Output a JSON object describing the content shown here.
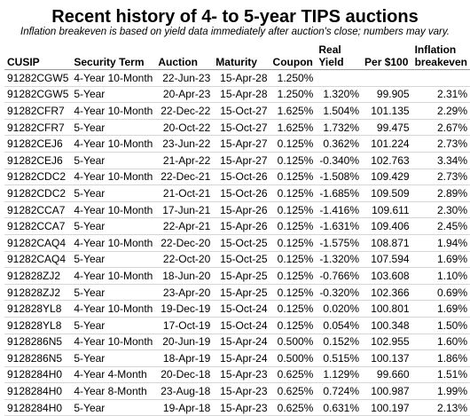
{
  "title": "Recent history of 4- to 5-year TIPS auctions",
  "subtitle": "Inflation breakeven is based on yield data immediately after auction's close; numbers may vary.",
  "headers": {
    "cusip": "CUSIP",
    "term": "Security Term",
    "auction": "Auction",
    "maturity": "Maturity",
    "coupon": "Coupon",
    "real_yield_1": "Real",
    "real_yield_2": "Yield",
    "per100": "Per $100",
    "inflation_1": "Inflation",
    "inflation_2": "breakeven"
  },
  "rows": [
    {
      "cusip": "91282CGW5",
      "term": "4-Year 10-Month",
      "auction": "22-Jun-23",
      "maturity": "15-Apr-28",
      "coupon": "1.250%",
      "real_yield": "",
      "per100": "",
      "breakeven": ""
    },
    {
      "cusip": "91282CGW5",
      "term": "5-Year",
      "auction": "20-Apr-23",
      "maturity": "15-Apr-28",
      "coupon": "1.250%",
      "real_yield": "1.320%",
      "per100": "99.905",
      "breakeven": "2.31%"
    },
    {
      "cusip": "91282CFR7",
      "term": "4-Year 10-Month",
      "auction": "22-Dec-22",
      "maturity": "15-Oct-27",
      "coupon": "1.625%",
      "real_yield": "1.504%",
      "per100": "101.135",
      "breakeven": "2.29%"
    },
    {
      "cusip": "91282CFR7",
      "term": "5-Year",
      "auction": "20-Oct-22",
      "maturity": "15-Oct-27",
      "coupon": "1.625%",
      "real_yield": "1.732%",
      "per100": "99.475",
      "breakeven": "2.67%"
    },
    {
      "cusip": "91282CEJ6",
      "term": "4-Year 10-Month",
      "auction": "23-Jun-22",
      "maturity": "15-Apr-27",
      "coupon": "0.125%",
      "real_yield": "0.362%",
      "per100": "101.224",
      "breakeven": "2.73%"
    },
    {
      "cusip": "91282CEJ6",
      "term": "5-Year",
      "auction": "21-Apr-22",
      "maturity": "15-Apr-27",
      "coupon": "0.125%",
      "real_yield": "-0.340%",
      "per100": "102.763",
      "breakeven": "3.34%"
    },
    {
      "cusip": "91282CDC2",
      "term": "4-Year 10-Month",
      "auction": "22-Dec-21",
      "maturity": "15-Oct-26",
      "coupon": "0.125%",
      "real_yield": "-1.508%",
      "per100": "109.429",
      "breakeven": "2.73%"
    },
    {
      "cusip": "91282CDC2",
      "term": "5-Year",
      "auction": "21-Oct-21",
      "maturity": "15-Oct-26",
      "coupon": "0.125%",
      "real_yield": "-1.685%",
      "per100": "109.509",
      "breakeven": "2.89%"
    },
    {
      "cusip": "91282CCA7",
      "term": "4-Year 10-Month",
      "auction": "17-Jun-21",
      "maturity": "15-Apr-26",
      "coupon": "0.125%",
      "real_yield": "-1.416%",
      "per100": "109.611",
      "breakeven": "2.30%"
    },
    {
      "cusip": "91282CCA7",
      "term": "5-Year",
      "auction": "22-Apr-21",
      "maturity": "15-Apr-26",
      "coupon": "0.125%",
      "real_yield": "-1.631%",
      "per100": "109.406",
      "breakeven": "2.45%"
    },
    {
      "cusip": "91282CAQ4",
      "term": "4-Year 10-Month",
      "auction": "22-Dec-20",
      "maturity": "15-Oct-25",
      "coupon": "0.125%",
      "real_yield": "-1.575%",
      "per100": "108.871",
      "breakeven": "1.94%"
    },
    {
      "cusip": "91282CAQ4",
      "term": "5-Year",
      "auction": "22-Oct-20",
      "maturity": "15-Oct-25",
      "coupon": "0.125%",
      "real_yield": "-1.320%",
      "per100": "107.594",
      "breakeven": "1.69%"
    },
    {
      "cusip": "912828ZJ2",
      "term": "4-Year 10-Month",
      "auction": "18-Jun-20",
      "maturity": "15-Apr-25",
      "coupon": "0.125%",
      "real_yield": "-0.766%",
      "per100": "103.608",
      "breakeven": "1.10%"
    },
    {
      "cusip": "912828ZJ2",
      "term": "5-Year",
      "auction": "23-Apr-20",
      "maturity": "15-Apr-25",
      "coupon": "0.125%",
      "real_yield": "-0.320%",
      "per100": "102.366",
      "breakeven": "0.69%"
    },
    {
      "cusip": "912828YL8",
      "term": "4-Year 10-Month",
      "auction": "19-Dec-19",
      "maturity": "15-Oct-24",
      "coupon": "0.125%",
      "real_yield": "0.020%",
      "per100": "100.801",
      "breakeven": "1.69%"
    },
    {
      "cusip": "912828YL8",
      "term": "5-Year",
      "auction": "17-Oct-19",
      "maturity": "15-Oct-24",
      "coupon": "0.125%",
      "real_yield": "0.054%",
      "per100": "100.348",
      "breakeven": "1.50%"
    },
    {
      "cusip": "9128286N5",
      "term": "4-Year 10-Month",
      "auction": "20-Jun-19",
      "maturity": "15-Apr-24",
      "coupon": "0.500%",
      "real_yield": "0.152%",
      "per100": "102.955",
      "breakeven": "1.60%"
    },
    {
      "cusip": "9128286N5",
      "term": "5-Year",
      "auction": "18-Apr-19",
      "maturity": "15-Apr-24",
      "coupon": "0.500%",
      "real_yield": "0.515%",
      "per100": "100.137",
      "breakeven": "1.86%"
    },
    {
      "cusip": "9128284H0",
      "term": "4-Year 4-Month",
      "auction": "20-Dec-18",
      "maturity": "15-Apr-23",
      "coupon": "0.625%",
      "real_yield": "1.129%",
      "per100": "99.660",
      "breakeven": "1.51%"
    },
    {
      "cusip": "9128284H0",
      "term": "4-Year 8-Month",
      "auction": "23-Aug-18",
      "maturity": "15-Apr-23",
      "coupon": "0.625%",
      "real_yield": "0.724%",
      "per100": "100.987",
      "breakeven": "1.99%"
    },
    {
      "cusip": "9128284H0",
      "term": "5-Year",
      "auction": "19-Apr-18",
      "maturity": "15-Apr-23",
      "coupon": "0.625%",
      "real_yield": "0.631%",
      "per100": "100.197",
      "breakeven": "2.13%"
    }
  ]
}
